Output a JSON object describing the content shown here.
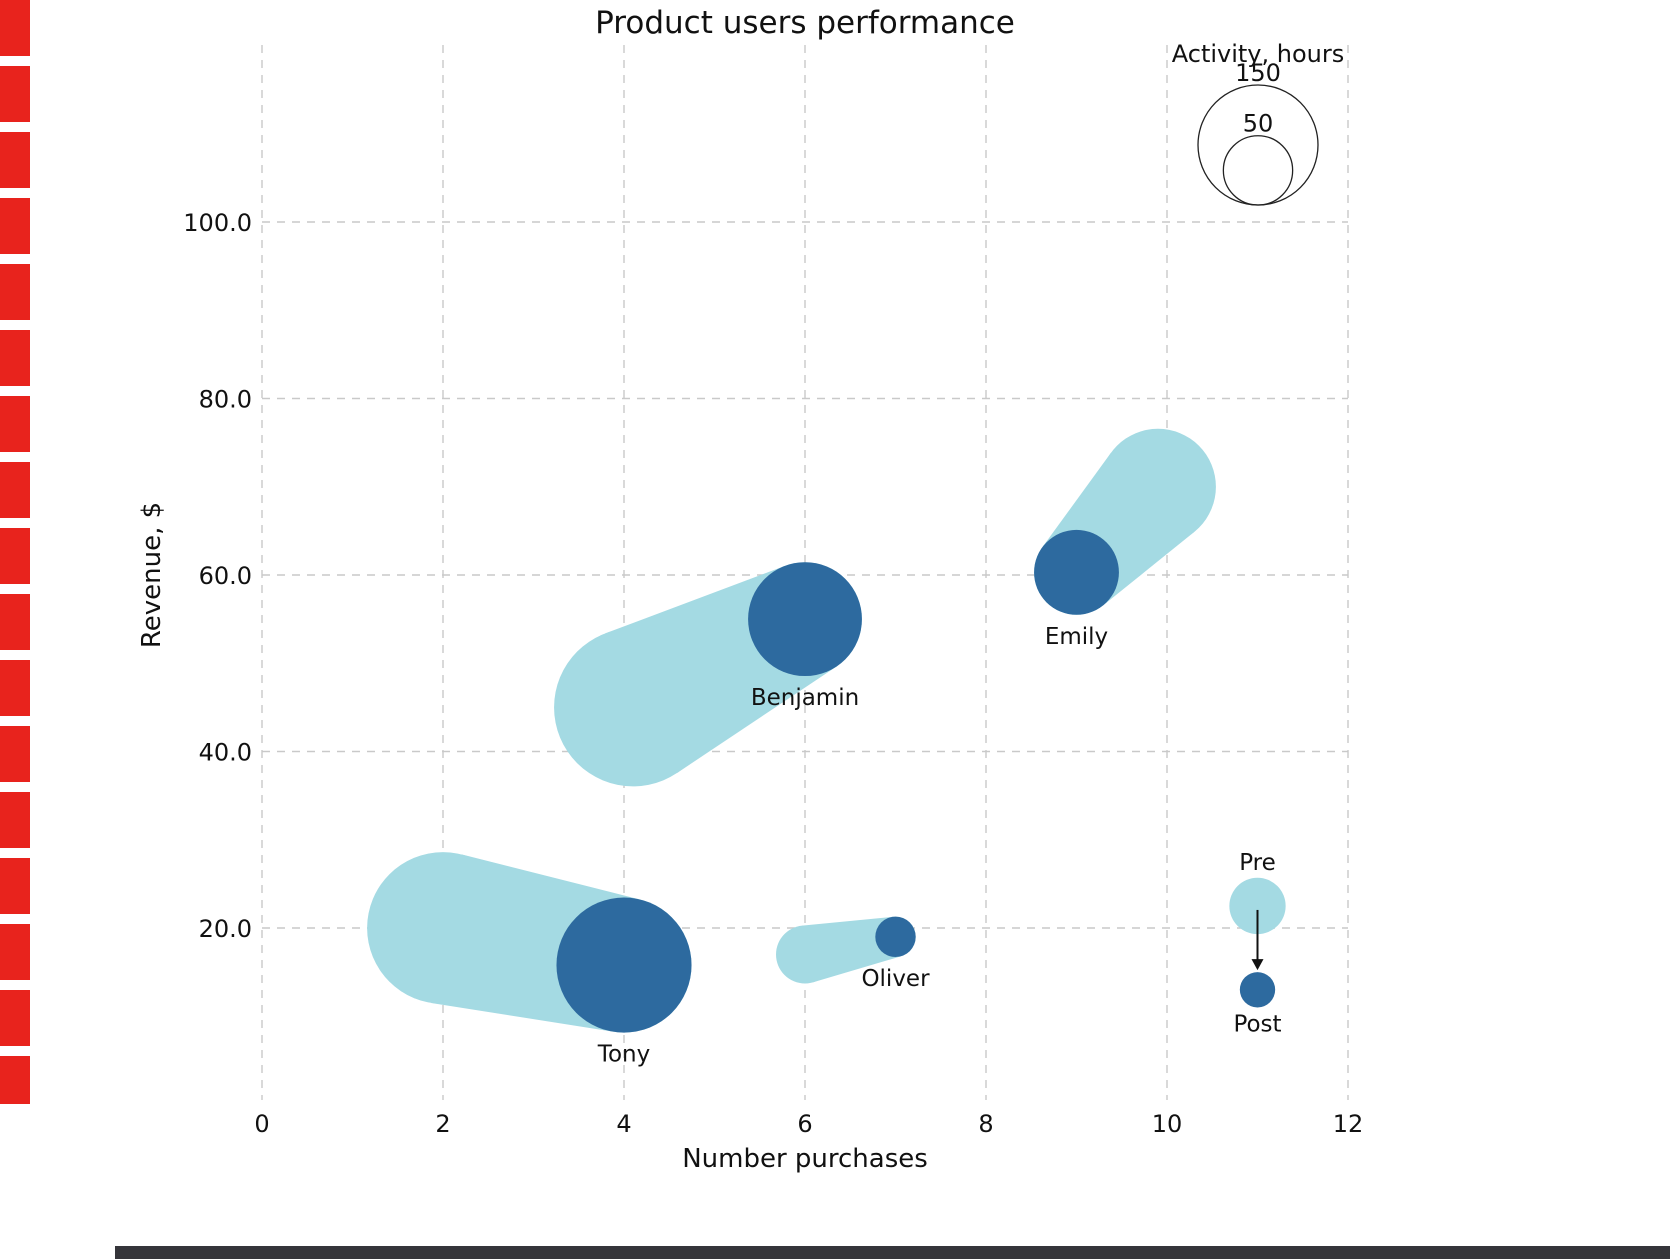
{
  "artifacts": {
    "left_marker_color": "#e8231d",
    "bottom_bar_color": "#35353a"
  },
  "chart_data": {
    "type": "scatter",
    "subtype": "bubble-transition",
    "title": "Product users performance",
    "xlabel": "Number purchases",
    "ylabel": "Revenue, $",
    "xlim": [
      0,
      12
    ],
    "ylim": [
      0,
      110
    ],
    "x_ticks": [
      0,
      2,
      4,
      6,
      8,
      10,
      12
    ],
    "y_ticks": [
      20,
      40,
      60,
      80,
      100
    ],
    "grid": "dashed",
    "legend_position": "top-right",
    "colors": {
      "pre": "#a4dae3",
      "post": "#2d6a9f",
      "grid": "#c9c9c9",
      "text": "#111111"
    },
    "size_legend": {
      "title": "Activity, hours",
      "values": [
        150,
        50
      ]
    },
    "state_legend": {
      "pre_label": "Pre",
      "post_label": "Post",
      "x": 11,
      "pre_y": 22.5,
      "post_y": 13,
      "pre_activity": 33,
      "post_activity": 13
    },
    "users": [
      {
        "name": "Tony",
        "pre": {
          "x": 2,
          "y": 20,
          "activity": 240
        },
        "post": {
          "x": 4,
          "y": 15.8,
          "activity": 190
        }
      },
      {
        "name": "Oliver",
        "pre": {
          "x": 6,
          "y": 17,
          "activity": 35
        },
        "post": {
          "x": 7,
          "y": 19,
          "activity": 17
        }
      },
      {
        "name": "Benjamin",
        "pre": {
          "x": 4.1,
          "y": 45,
          "activity": 260
        },
        "post": {
          "x": 6,
          "y": 55,
          "activity": 135
        }
      },
      {
        "name": "Emily",
        "pre": {
          "x": 9.9,
          "y": 70,
          "activity": 140
        },
        "post": {
          "x": 9,
          "y": 60.3,
          "activity": 75
        }
      }
    ]
  }
}
